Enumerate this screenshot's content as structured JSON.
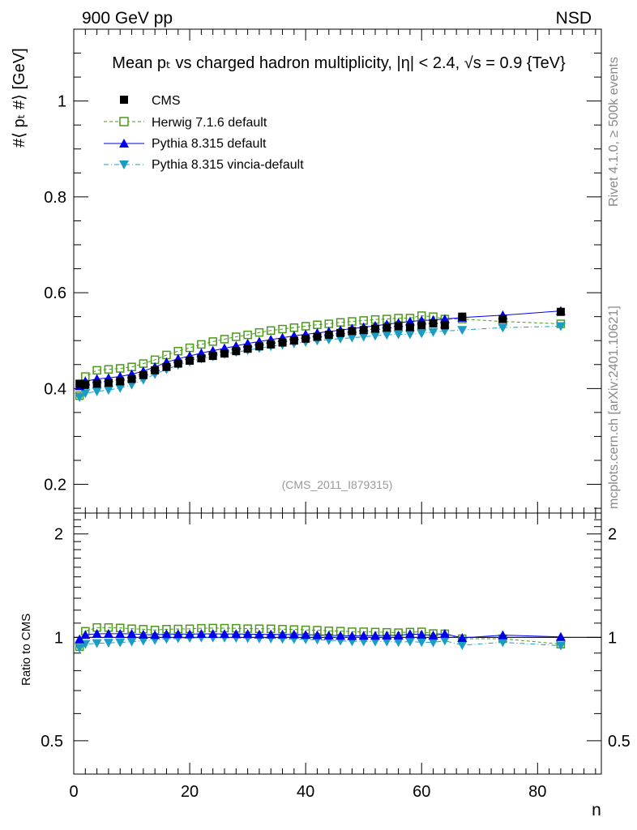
{
  "header": {
    "energy_label": "900 GeV pp",
    "process_label": "NSD",
    "title": "Mean pₜ vs charged hadron multiplicity, |η| < 2.4, √s = 0.9 {TeV}",
    "side_label_top": "Rivet 4.1.0, ≥ 500k events",
    "side_label_bottom": "mcplots.cern.ch [arXiv:2401.10621]",
    "analysis_id": "(CMS_2011_I879315)"
  },
  "colors": {
    "cms": "#000000",
    "herwig": "#4a9a1a",
    "pythia": "#0000ee",
    "vincia": "#1a9cc4",
    "axis": "#000000",
    "watermark": "#888888"
  },
  "chart_data": [
    {
      "type": "scatter",
      "panel": "main",
      "title": "Mean pₜ vs charged hadron multiplicity, |η| < 2.4, √s = 0.9 {TeV}",
      "xlabel": "n",
      "ylabel": "#⟨ pₜ #⟩ [GeV]",
      "xlim": [
        0,
        91
      ],
      "ylim": [
        0.14,
        1.15
      ],
      "yticks": [
        0.2,
        0.4,
        0.6,
        0.8,
        1
      ],
      "ytick_labels": [
        "0.2",
        "0.4",
        "0.6",
        "0.8",
        "1"
      ],
      "legend": "top-left",
      "series": [
        {
          "name": "CMS",
          "key": "cms",
          "marker": "square-filled",
          "x": [
            1,
            2,
            4,
            6,
            8,
            10,
            12,
            14,
            16,
            18,
            20,
            22,
            24,
            26,
            28,
            30,
            32,
            34,
            36,
            38,
            40,
            42,
            44,
            46,
            48,
            50,
            52,
            54,
            56,
            58,
            60,
            62,
            64,
            67,
            74,
            84
          ],
          "y": [
            0.41,
            0.408,
            0.41,
            0.412,
            0.415,
            0.42,
            0.428,
            0.438,
            0.445,
            0.452,
            0.458,
            0.463,
            0.468,
            0.473,
            0.478,
            0.483,
            0.488,
            0.492,
            0.496,
            0.5,
            0.504,
            0.508,
            0.512,
            0.516,
            0.52,
            0.522,
            0.525,
            0.527,
            0.53,
            0.528,
            0.532,
            0.536,
            0.532,
            0.55,
            0.545,
            0.56
          ]
        },
        {
          "name": "Herwig 7.1.6 default",
          "key": "herwig",
          "marker": "square-open",
          "line": "dashed",
          "x": [
            1,
            2,
            4,
            6,
            8,
            10,
            12,
            14,
            16,
            18,
            20,
            22,
            24,
            26,
            28,
            30,
            32,
            34,
            36,
            38,
            40,
            42,
            44,
            46,
            48,
            50,
            52,
            54,
            56,
            58,
            60,
            62,
            64,
            67,
            74,
            84
          ],
          "y": [
            0.385,
            0.425,
            0.438,
            0.44,
            0.442,
            0.445,
            0.452,
            0.46,
            0.47,
            0.478,
            0.485,
            0.492,
            0.498,
            0.503,
            0.508,
            0.512,
            0.517,
            0.521,
            0.524,
            0.527,
            0.53,
            0.533,
            0.535,
            0.538,
            0.54,
            0.542,
            0.544,
            0.545,
            0.547,
            0.547,
            0.552,
            0.55,
            0.545,
            0.545,
            0.54,
            0.535
          ]
        },
        {
          "name": "Pythia 8.315 default",
          "key": "pythia",
          "marker": "triangle-up",
          "line": "solid",
          "x": [
            1,
            2,
            4,
            6,
            8,
            10,
            12,
            14,
            16,
            18,
            20,
            22,
            24,
            26,
            28,
            30,
            32,
            34,
            36,
            38,
            40,
            42,
            44,
            46,
            48,
            50,
            52,
            54,
            56,
            58,
            60,
            62,
            64,
            67,
            74,
            84
          ],
          "y": [
            0.405,
            0.415,
            0.42,
            0.422,
            0.425,
            0.43,
            0.436,
            0.445,
            0.455,
            0.462,
            0.468,
            0.474,
            0.479,
            0.484,
            0.489,
            0.494,
            0.498,
            0.502,
            0.506,
            0.51,
            0.513,
            0.516,
            0.519,
            0.522,
            0.525,
            0.528,
            0.531,
            0.534,
            0.537,
            0.54,
            0.542,
            0.543,
            0.545,
            0.548,
            0.553,
            0.562
          ]
        },
        {
          "name": "Pythia 8.315 vincia-default",
          "key": "vincia",
          "marker": "triangle-down",
          "line": "dashdot",
          "x": [
            1,
            2,
            4,
            6,
            8,
            10,
            12,
            14,
            16,
            18,
            20,
            22,
            24,
            26,
            28,
            30,
            32,
            34,
            36,
            38,
            40,
            42,
            44,
            46,
            48,
            50,
            52,
            54,
            56,
            58,
            60,
            62,
            64,
            67,
            74,
            84
          ],
          "y": [
            0.382,
            0.39,
            0.394,
            0.397,
            0.401,
            0.408,
            0.418,
            0.43,
            0.44,
            0.449,
            0.456,
            0.462,
            0.467,
            0.472,
            0.476,
            0.48,
            0.484,
            0.488,
            0.491,
            0.494,
            0.497,
            0.5,
            0.502,
            0.504,
            0.506,
            0.508,
            0.51,
            0.512,
            0.513,
            0.513,
            0.515,
            0.518,
            0.52,
            0.522,
            0.527,
            0.53
          ]
        }
      ]
    },
    {
      "type": "scatter",
      "panel": "ratio",
      "xlabel": "n",
      "ylabel": "Ratio to CMS",
      "xlim": [
        0,
        91
      ],
      "ylim": [
        0.4,
        2.3
      ],
      "log_y": true,
      "yticks": [
        0.5,
        1,
        2
      ],
      "ytick_labels": [
        "0.5",
        "1",
        "2"
      ],
      "xticks": [
        0,
        20,
        40,
        60,
        80
      ],
      "xtick_labels": [
        "0",
        "20",
        "40",
        "60",
        "80"
      ],
      "reference_line": 1
    }
  ]
}
